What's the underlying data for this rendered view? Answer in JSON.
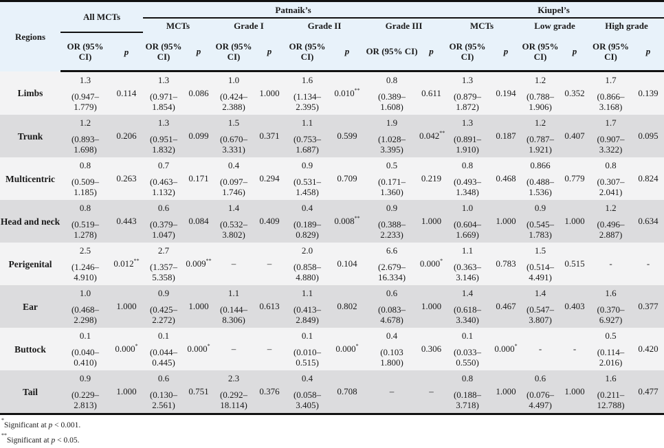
{
  "header": {
    "regions": "Regions",
    "all_mcts": "All MCTs",
    "patnaik": "Patnaik’s",
    "kiupel": "Kiupel’s",
    "patnaik_sub": [
      "MCTs",
      "Grade I",
      "Grade II",
      "Grade III"
    ],
    "kiupel_sub": [
      "MCTs",
      "Low grade",
      "High grade"
    ],
    "or_label": "OR (95% CI)",
    "p_label": "p"
  },
  "rows": [
    {
      "region": "Limbs",
      "cells": [
        {
          "or": "1.3",
          "ci": "(0.947–1.779)",
          "p": "0.114",
          "sig": ""
        },
        {
          "or": "1.3",
          "ci": "(0.971–1.854)",
          "p": "0.086",
          "sig": ""
        },
        {
          "or": "1.0",
          "ci": "(0.424–2.388)",
          "p": "1.000",
          "sig": ""
        },
        {
          "or": "1.6",
          "ci": "(1.134–2.395)",
          "p": "0.010",
          "sig": "**"
        },
        {
          "or": "0.8",
          "ci": "(0.389–1.608)",
          "p": "0.611",
          "sig": ""
        },
        {
          "or": "1.3",
          "ci": "(0.879–1.872)",
          "p": "0.194",
          "sig": ""
        },
        {
          "or": "1.2",
          "ci": "(0.788–1.906)",
          "p": "0.352",
          "sig": ""
        },
        {
          "or": "1.7",
          "ci": "(0.866–3.168)",
          "p": "0.139",
          "sig": ""
        }
      ]
    },
    {
      "region": "Trunk",
      "cells": [
        {
          "or": "1.2",
          "ci": "(0.893–1.698)",
          "p": "0.206",
          "sig": ""
        },
        {
          "or": "1.3",
          "ci": "(0.951–1.832)",
          "p": "0.099",
          "sig": ""
        },
        {
          "or": "1.5",
          "ci": "(0.670–3.331)",
          "p": "0.371",
          "sig": ""
        },
        {
          "or": "1.1",
          "ci": "(0.753–1.687)",
          "p": "0.599",
          "sig": ""
        },
        {
          "or": "1.9",
          "ci": "(1.028–3.395)",
          "p": "0.042",
          "sig": "**"
        },
        {
          "or": "1.3",
          "ci": "(0.891–1.910)",
          "p": "0.187",
          "sig": ""
        },
        {
          "or": "1.2",
          "ci": "(0.787–1.921)",
          "p": "0.407",
          "sig": ""
        },
        {
          "or": "1.7",
          "ci": "(0.907–3.322)",
          "p": "0.095",
          "sig": ""
        }
      ]
    },
    {
      "region": "Multicentric",
      "cells": [
        {
          "or": "0.8",
          "ci": "(0.509–1.185)",
          "p": "0.263",
          "sig": ""
        },
        {
          "or": "0.7",
          "ci": "(0.463–1.132)",
          "p": "0.171",
          "sig": ""
        },
        {
          "or": "0.4",
          "ci": "(0.097–1.746)",
          "p": "0.294",
          "sig": ""
        },
        {
          "or": "0.9",
          "ci": "(0.531–1.458)",
          "p": "0.709",
          "sig": ""
        },
        {
          "or": "0.5",
          "ci": "(0.171–1.360)",
          "p": "0.219",
          "sig": ""
        },
        {
          "or": "0.8",
          "ci": "(0.493–1.348)",
          "p": "0.468",
          "sig": ""
        },
        {
          "or": "0.866",
          "ci": "(0.488–1.536)",
          "p": "0.779",
          "sig": ""
        },
        {
          "or": "0.8",
          "ci": "(0.307–2.041)",
          "p": "0.824",
          "sig": ""
        }
      ]
    },
    {
      "region": "Head and neck",
      "cells": [
        {
          "or": "0.8",
          "ci": "(0.519–1.278)",
          "p": "0.443",
          "sig": ""
        },
        {
          "or": "0.6",
          "ci": "(0.379–1.047)",
          "p": "0.084",
          "sig": ""
        },
        {
          "or": "1.4",
          "ci": "(0.532–3.802)",
          "p": "0.409",
          "sig": ""
        },
        {
          "or": "0.4",
          "ci": "(0.189–0.829)",
          "p": "0.008",
          "sig": "**"
        },
        {
          "or": "0.9",
          "ci": "(0.388–2.233)",
          "p": "1.000",
          "sig": ""
        },
        {
          "or": "1.0",
          "ci": "(0.604–1.669)",
          "p": "1.000",
          "sig": ""
        },
        {
          "or": "0.9",
          "ci": "(0.545–1.783)",
          "p": "1.000",
          "sig": ""
        },
        {
          "or": "1.2",
          "ci": "(0.496–2.887)",
          "p": "0.634",
          "sig": ""
        }
      ]
    },
    {
      "region": "Perigenital",
      "cells": [
        {
          "or": "2.5",
          "ci": "(1.246–4.910)",
          "p": "0.012",
          "sig": "**"
        },
        {
          "or": "2.7",
          "ci": "(1.357–5.358)",
          "p": "0.009",
          "sig": "**"
        },
        {
          "or": "–",
          "ci": "",
          "p": "–",
          "sig": ""
        },
        {
          "or": "2.0",
          "ci": "(0.858–4.880)",
          "p": "0.104",
          "sig": ""
        },
        {
          "or": "6.6",
          "ci": "(2.679–16.334)",
          "p": "0.000",
          "sig": "*"
        },
        {
          "or": "1.1",
          "ci": "(0.363–3.146)",
          "p": "0.783",
          "sig": ""
        },
        {
          "or": "1.5",
          "ci": "(0.514–4.491)",
          "p": "0.515",
          "sig": ""
        },
        {
          "or": "-",
          "ci": "",
          "p": "-",
          "sig": ""
        }
      ]
    },
    {
      "region": "Ear",
      "cells": [
        {
          "or": "1.0",
          "ci": "(0.468–2.298)",
          "p": "1.000",
          "sig": ""
        },
        {
          "or": "0.9",
          "ci": "(0.425–2.272)",
          "p": "1.000",
          "sig": ""
        },
        {
          "or": "1.1",
          "ci": "(0.144–8.306)",
          "p": "0.613",
          "sig": ""
        },
        {
          "or": "1.1",
          "ci": "(0.413–2.849)",
          "p": "0.802",
          "sig": ""
        },
        {
          "or": "0.6",
          "ci": "(0.083–4.678)",
          "p": "1.000",
          "sig": ""
        },
        {
          "or": "1.4",
          "ci": "(0.618–3.340)",
          "p": "0.467",
          "sig": ""
        },
        {
          "or": "1.4",
          "ci": "(0.547–3.807)",
          "p": "0.403",
          "sig": ""
        },
        {
          "or": "1.6",
          "ci": "(0.370–6.927)",
          "p": "0.377",
          "sig": ""
        }
      ]
    },
    {
      "region": "Buttock",
      "cells": [
        {
          "or": "0.1",
          "ci": "(0.040–0.410)",
          "p": "0.000",
          "sig": "*"
        },
        {
          "or": "0.1",
          "ci": "(0.044–0.445)",
          "p": "0.000",
          "sig": "*"
        },
        {
          "or": "–",
          "ci": "",
          "p": "–",
          "sig": ""
        },
        {
          "or": "0.1",
          "ci": "(0.010–0.515)",
          "p": "0.000",
          "sig": "*"
        },
        {
          "or": "0.4",
          "ci": "(0.103 1.800)",
          "p": "0.306",
          "sig": ""
        },
        {
          "or": "0.1",
          "ci": "(0.033–0.550)",
          "p": "0.000",
          "sig": "*"
        },
        {
          "or": "-",
          "ci": "",
          "p": "-",
          "sig": ""
        },
        {
          "or": "0.5",
          "ci": "(0.114–2.016)",
          "p": "0.420",
          "sig": ""
        }
      ]
    },
    {
      "region": "Tail",
      "cells": [
        {
          "or": "0.9",
          "ci": "(0.229–2.813)",
          "p": "1.000",
          "sig": ""
        },
        {
          "or": "0.6",
          "ci": "(0.130–2.561)",
          "p": "0.751",
          "sig": ""
        },
        {
          "or": "2.3",
          "ci": "(0.292–18.114)",
          "p": "0.376",
          "sig": ""
        },
        {
          "or": "0.4",
          "ci": "(0.058–3.405)",
          "p": "0.708",
          "sig": ""
        },
        {
          "or": "–",
          "ci": "",
          "p": "–",
          "sig": ""
        },
        {
          "or": "0.8",
          "ci": "(0.188–3.718)",
          "p": "1.000",
          "sig": ""
        },
        {
          "or": "0.6",
          "ci": "(0.076–4.497)",
          "p": "1.000",
          "sig": ""
        },
        {
          "or": "1.6",
          "ci": "(0.211–12.788)",
          "p": "0.477",
          "sig": ""
        }
      ]
    }
  ],
  "footnotes": [
    {
      "mark": "*",
      "text": "Significant at ",
      "p": "p",
      "rest": " < 0.001."
    },
    {
      "mark": "**",
      "text": "Significant at ",
      "p": "p",
      "rest": " < 0.05."
    }
  ]
}
